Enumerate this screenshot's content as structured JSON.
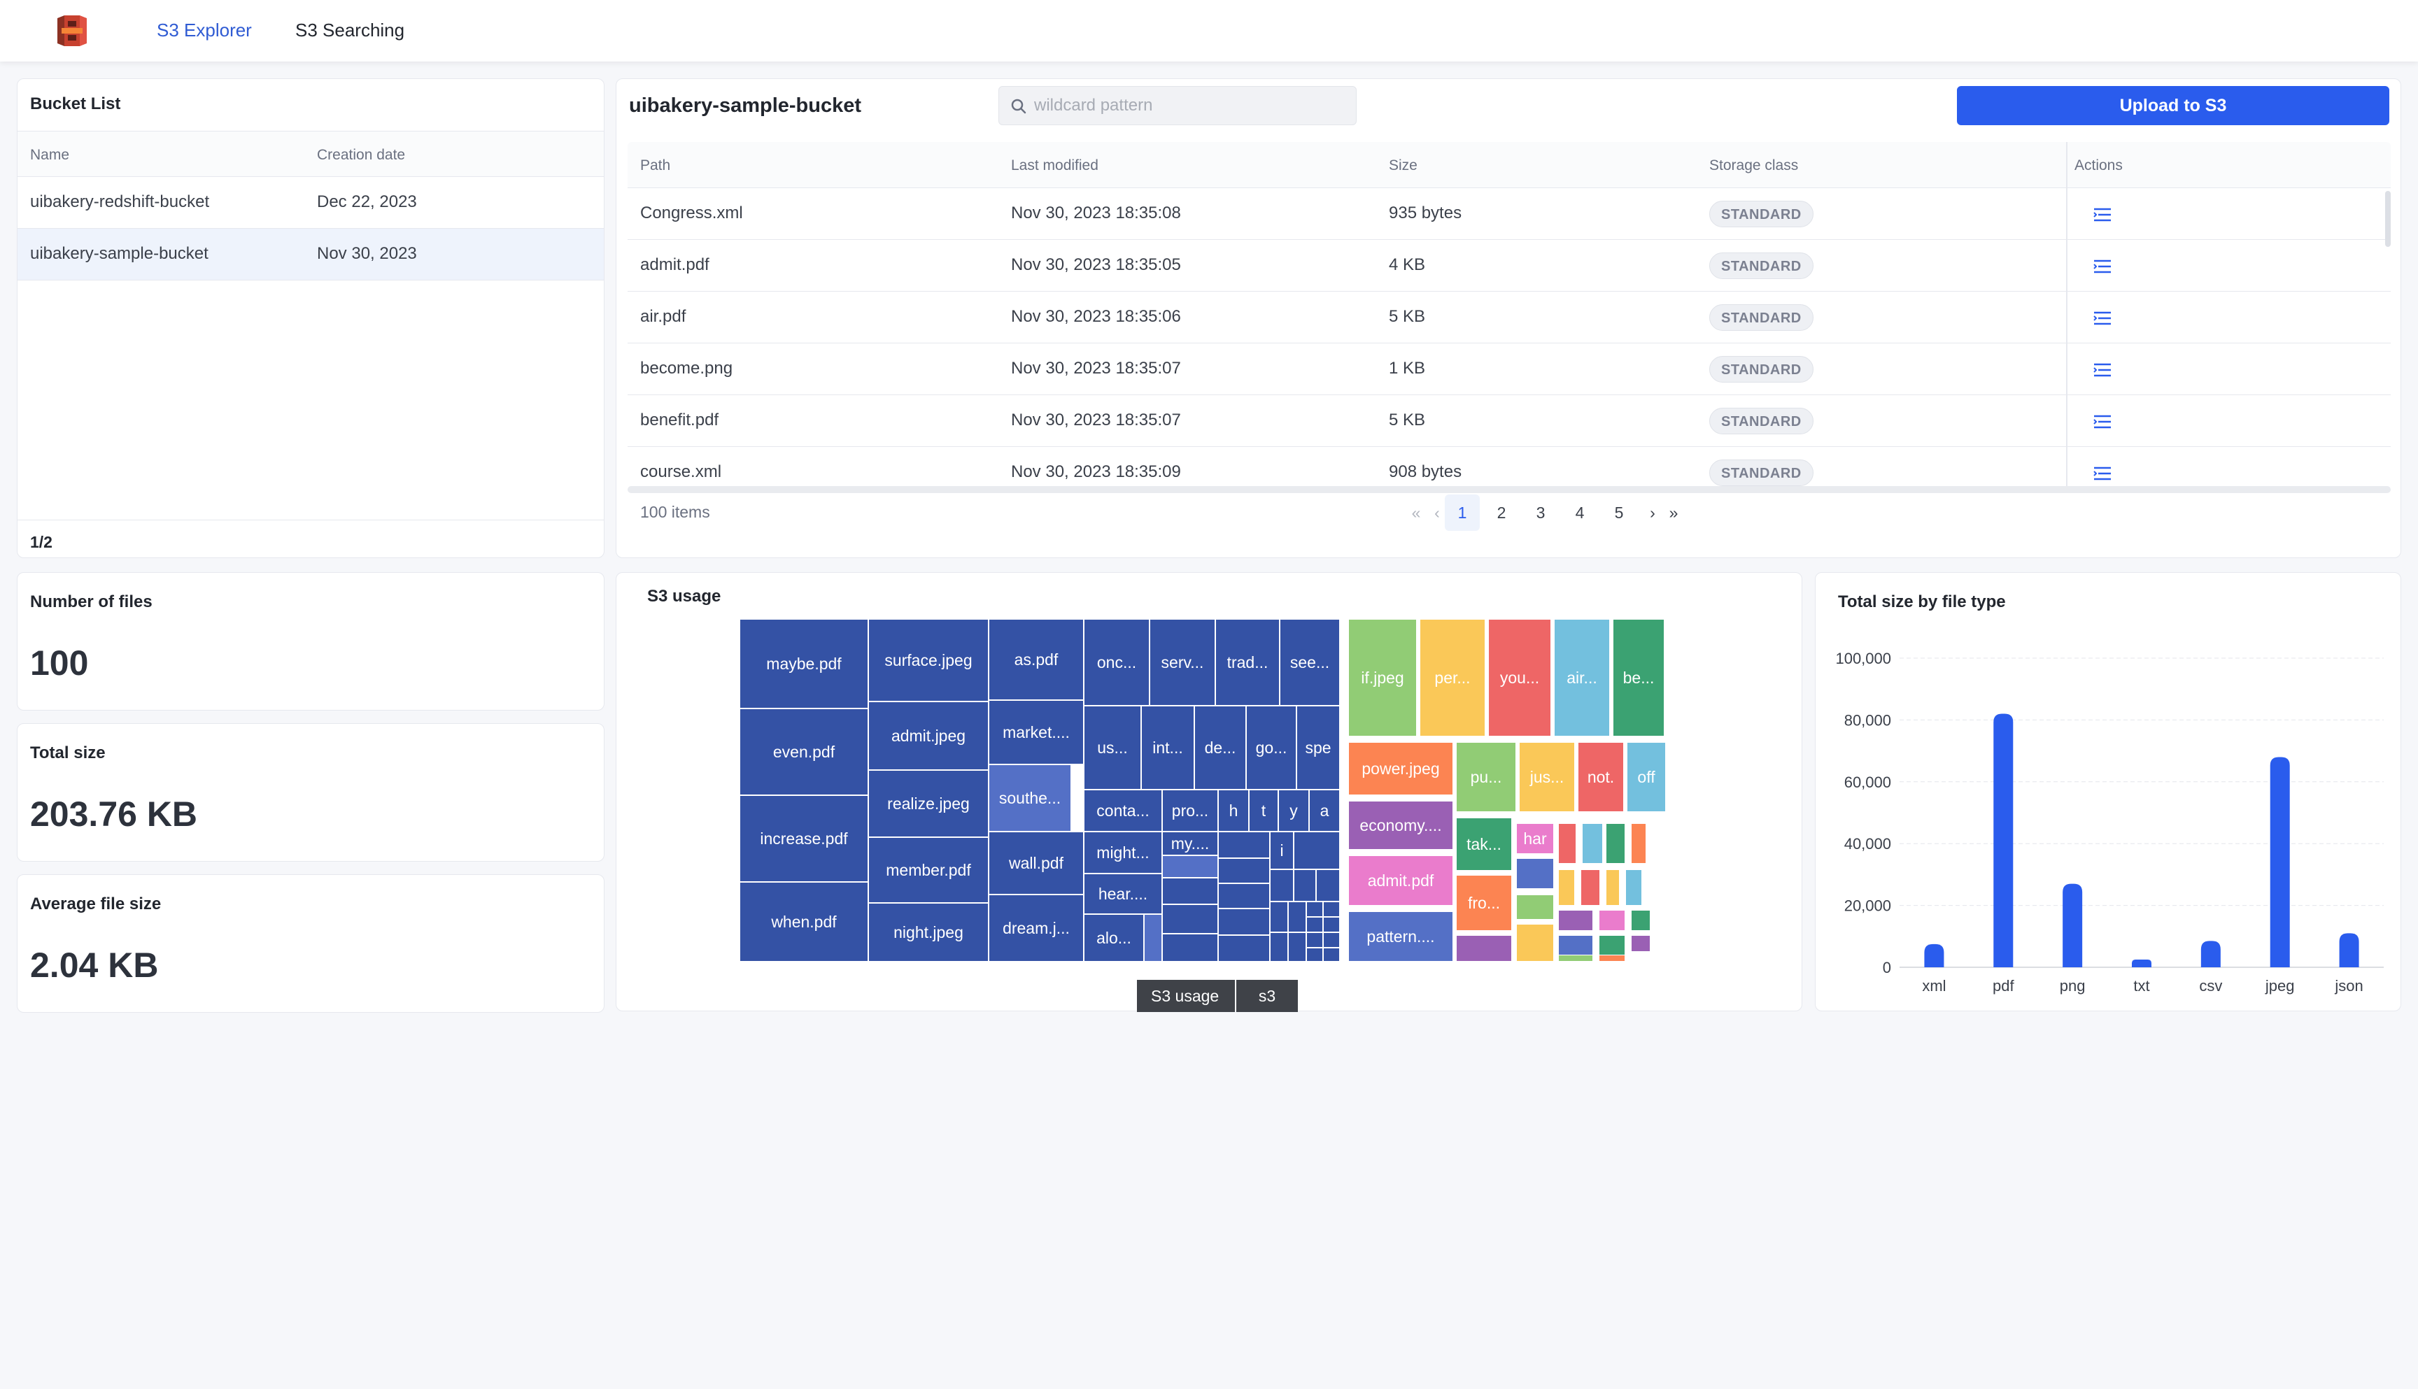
{
  "nav": {
    "links": [
      {
        "label": "S3 Explorer",
        "active": true
      },
      {
        "label": "S3 Searching",
        "active": false
      }
    ],
    "logo_icon": "s3-bucket-logo"
  },
  "bucket_list": {
    "title": "Bucket List",
    "columns": [
      "Name",
      "Creation date"
    ],
    "rows": [
      {
        "name": "uibakery-redshift-bucket",
        "created": "Dec 22, 2023"
      },
      {
        "name": "uibakery-sample-bucket",
        "created": "Nov 30, 2023"
      }
    ],
    "pager": "1/2"
  },
  "stats": [
    {
      "title": "Number of files",
      "value": "100"
    },
    {
      "title": "Total size",
      "value": "203.76 KB"
    },
    {
      "title": "Average file size",
      "value": "2.04 KB"
    }
  ],
  "files": {
    "bucket_name": "uibakery-sample-bucket",
    "search_placeholder": "wildcard pattern",
    "upload_label": "Upload to S3",
    "columns": [
      "Path",
      "Last modified",
      "Size",
      "Storage class",
      "Actions"
    ],
    "rows": [
      {
        "path": "Congress.xml",
        "modified": "Nov 30, 2023 18:35:08",
        "size": "935 bytes",
        "storage": "STANDARD"
      },
      {
        "path": "admit.pdf",
        "modified": "Nov 30, 2023 18:35:05",
        "size": "4 KB",
        "storage": "STANDARD"
      },
      {
        "path": "air.pdf",
        "modified": "Nov 30, 2023 18:35:06",
        "size": "5 KB",
        "storage": "STANDARD"
      },
      {
        "path": "become.png",
        "modified": "Nov 30, 2023 18:35:07",
        "size": "1 KB",
        "storage": "STANDARD"
      },
      {
        "path": "benefit.pdf",
        "modified": "Nov 30, 2023 18:35:07",
        "size": "5 KB",
        "storage": "STANDARD"
      },
      {
        "path": "course.xml",
        "modified": "Nov 30, 2023 18:35:09",
        "size": "908 bytes",
        "storage": "STANDARD"
      }
    ],
    "items_count": "100 items",
    "pages": [
      "1",
      "2",
      "3",
      "4",
      "5"
    ],
    "current_page": "1"
  },
  "usage": {
    "title": "S3 usage",
    "breadcrumb": [
      "S3 usage",
      "s3"
    ],
    "colors": {
      "pdf": "#3452a5",
      "jpeg": "#91cc75",
      "png": "#fac858",
      "xml": "#ee6666",
      "txt": "#73c0de",
      "csv": "#3ba272",
      "other": "#fc8452",
      "doc": "#9a60b4",
      "misc": "#ea7ccc",
      "dark": "#5470c6"
    },
    "labels": [
      "maybe.pdf",
      "even.pdf",
      "increase.pdf",
      "when.pdf",
      "surface.jpeg",
      "admit.jpeg",
      "realize.jpeg",
      "member.pdf",
      "night.jpeg",
      "as.pdf",
      "market....",
      "southe...",
      "wall.pdf",
      "dream.j...",
      "onc...",
      "serv...",
      "trad...",
      "see...",
      "us...",
      "int...",
      "de...",
      "go...",
      "spe",
      "conta...",
      "pro...",
      "h",
      "t",
      "y",
      "a",
      "might...",
      "my....",
      "i",
      "hear....",
      "alo...",
      "if.jpeg",
      "per...",
      "you...",
      "air...",
      "be...",
      "power.jpeg",
      "pu...",
      "jus...",
      "not.",
      "off",
      "economy....",
      "tak...",
      "har",
      "admit.pdf",
      "fro...",
      "pattern...."
    ]
  },
  "chart": {
    "title": "Total size by file type",
    "bar_color": "#2a5ced"
  },
  "chart_data": {
    "type": "bar",
    "title": "Total size by file type",
    "categories": [
      "xml",
      "pdf",
      "png",
      "txt",
      "csv",
      "jpeg",
      "json"
    ],
    "values": [
      7500,
      82000,
      27000,
      2500,
      8500,
      68000,
      11000
    ],
    "ylim": [
      0,
      100000
    ],
    "yticks": [
      "0",
      "20,000",
      "40,000",
      "60,000",
      "80,000",
      "100,000"
    ],
    "grid": true,
    "xlabel": "",
    "ylabel": ""
  }
}
